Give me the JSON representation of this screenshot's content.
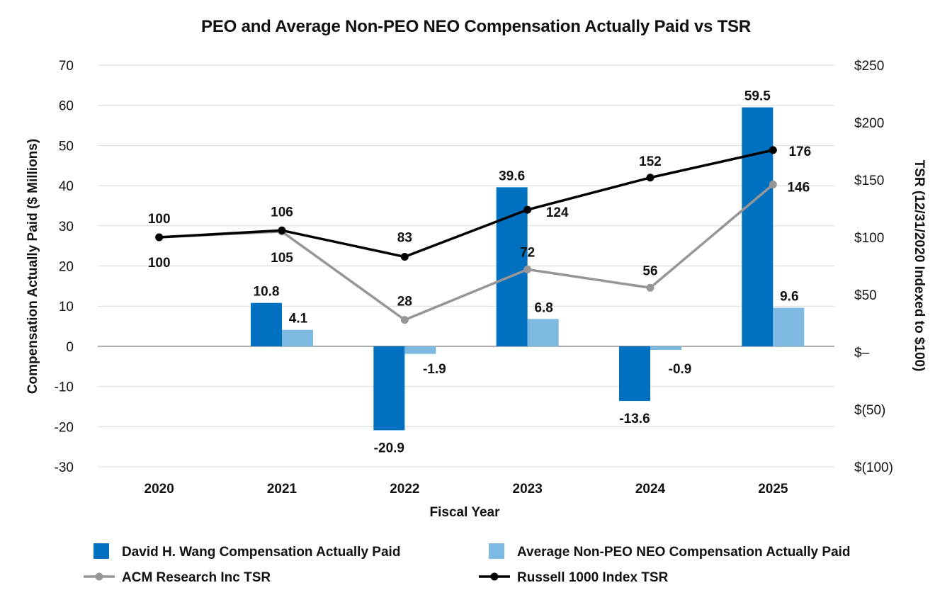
{
  "chart_data": {
    "type": "bar",
    "title": "PEO and Average Non-PEO NEO Compensation Actually Paid vs TSR",
    "xlabel": "Fiscal Year",
    "ylabel": "Compensation Actually Paid ($ Millions)",
    "y2label": "TSR (12/31/2020 Indexed to $100)",
    "categories": [
      "2020",
      "2021",
      "2022",
      "2023",
      "2024",
      "2025"
    ],
    "ylim": [
      -30,
      70
    ],
    "yticks": [
      "70",
      "60",
      "50",
      "40",
      "30",
      "20",
      "10",
      "0",
      "-10",
      "-20",
      "-30"
    ],
    "y2lim": [
      -100,
      250
    ],
    "y2ticks": [
      "$250",
      "$200",
      "$150",
      "$100",
      "$50",
      "$–",
      "$(50)",
      "$(100)"
    ],
    "gridlines": true,
    "legend_position": "bottom",
    "series": [
      {
        "name": "David H. Wang Compensation Actually Paid",
        "type": "bar",
        "axis": "left",
        "color": "#0070C0",
        "values": [
          null,
          10.8,
          -20.9,
          39.6,
          -13.6,
          59.5
        ],
        "labels": [
          "",
          "10.8",
          "-20.9",
          "39.6",
          "-13.6",
          "59.5"
        ]
      },
      {
        "name": "Average Non-PEO NEO Compensation Actually Paid",
        "type": "bar",
        "axis": "left",
        "color": "#7DB9E0",
        "values": [
          null,
          4.1,
          -1.9,
          6.8,
          -0.9,
          9.6
        ],
        "labels": [
          "",
          "4.1",
          "-1.9",
          "6.8",
          "-0.9",
          "9.6"
        ]
      },
      {
        "name": "ACM Research Inc TSR",
        "type": "line",
        "axis": "right",
        "color": "#969696",
        "values": [
          100,
          105,
          28,
          72,
          56,
          146
        ],
        "labels": [
          "100",
          "105",
          "28",
          "72",
          "56",
          "146"
        ]
      },
      {
        "name": "Russell 1000 Index TSR",
        "type": "line",
        "axis": "right",
        "color": "#000000",
        "values": [
          100,
          106,
          83,
          124,
          152,
          176
        ],
        "labels": [
          "100",
          "106",
          "83",
          "124",
          "152",
          "176"
        ]
      }
    ]
  }
}
